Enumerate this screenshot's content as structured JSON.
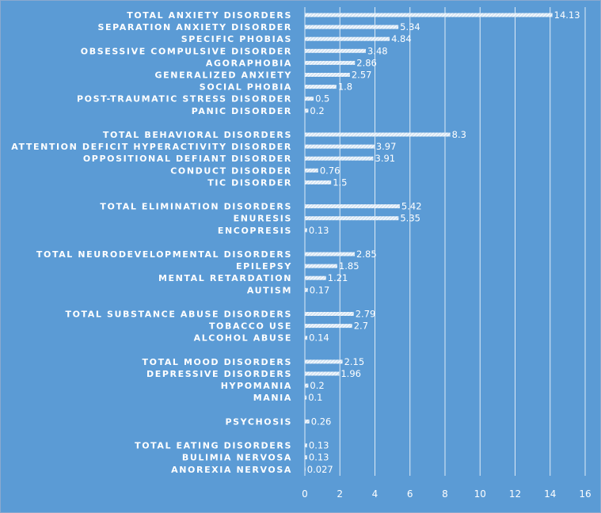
{
  "chart_data": {
    "type": "bar",
    "orientation": "horizontal",
    "categories": [
      "TOTAL ANXIETY DISORDERS",
      "SEPARATION ANXIETY DISORDER",
      "SPECIFIC PHOBIAS",
      "OBSESSIVE COMPULSIVE DISORDER",
      "AGORAPHOBIA",
      "GENERALIZED ANXIETY",
      "SOCIAL PHOBIA",
      "POST-TRAUMATIC STRESS DISORDER",
      "PANIC DISORDER",
      "",
      "TOTAL BEHAVIORAL DISORDERS",
      "ATTENTION DEFICIT HYPERACTIVITY DISORDER",
      "OPPOSITIONAL DEFIANT DISORDER",
      "CONDUCT DISORDER",
      "TIC DISORDER",
      "",
      "TOTAL ELIMINATION DISORDERS",
      "ENURESIS",
      "ENCOPRESIS",
      "",
      "TOTAL NEURODEVELOPMENTAL DISORDERS",
      "EPILEPSY",
      "MENTAL RETARDATION",
      "AUTISM",
      "",
      "TOTAL SUBSTANCE ABUSE DISORDERS",
      "TOBACCO USE",
      "ALCOHOL ABUSE",
      "",
      "TOTAL MOOD DISORDERS",
      "DEPRESSIVE DISORDERS",
      "HYPOMANIA",
      "MANIA",
      "",
      "PSYCHOSIS",
      "",
      "TOTAL EATING DISORDERS",
      "BULIMIA NERVOSA",
      "ANOREXIA NERVOSA"
    ],
    "values": [
      14.13,
      5.34,
      4.84,
      3.48,
      2.86,
      2.57,
      1.8,
      0.5,
      0.2,
      null,
      8.3,
      3.97,
      3.91,
      0.76,
      1.5,
      null,
      5.42,
      5.35,
      0.13,
      null,
      2.85,
      1.85,
      1.21,
      0.17,
      null,
      2.79,
      2.7,
      0.14,
      null,
      2.15,
      1.96,
      0.2,
      0.1,
      null,
      0.26,
      null,
      0.13,
      0.13,
      0.027
    ],
    "value_labels": [
      "14.13",
      "5.34",
      "4.84",
      "3.48",
      "2.86",
      "2.57",
      "1.8",
      "0.5",
      "0.2",
      "",
      "8.3",
      "3.97",
      "3.91",
      "0.76",
      "1.5",
      "",
      "5.42",
      "5.35",
      "0.13",
      "",
      "2.85",
      "1.85",
      "1.21",
      "0.17",
      "",
      "2.79",
      "2.7",
      "0.14",
      "",
      "2.15",
      "1.96",
      "0.2",
      "0.1",
      "",
      "0.26",
      "",
      "0.13",
      "0.13",
      "0.027"
    ],
    "x_ticks": [
      "0",
      "2",
      "4",
      "6",
      "8",
      "10",
      "12",
      "14",
      "16"
    ],
    "xlim": [
      0,
      16
    ],
    "title": "",
    "xlabel": "",
    "ylabel": "",
    "grid": "vertical",
    "legend": "none",
    "bar_pattern": "white diagonal hatch",
    "colors": {
      "background": "#5b9bd5",
      "bar": "#ffffff",
      "text": "#ffffff"
    }
  }
}
